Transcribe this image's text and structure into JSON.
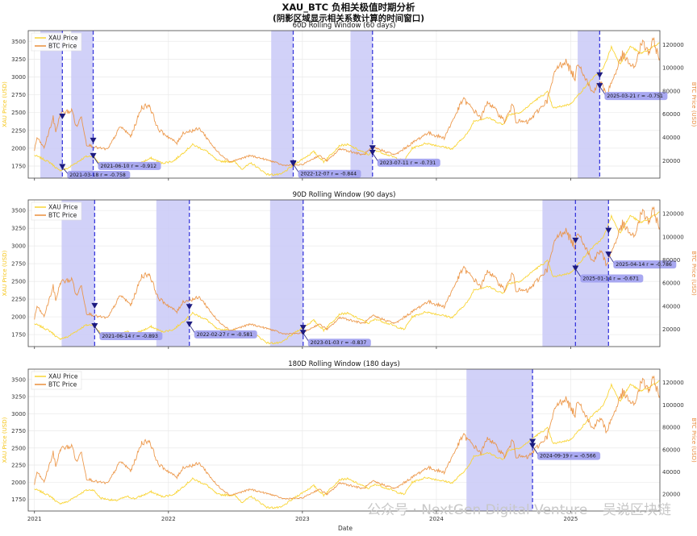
{
  "title": "XAU_BTC 负相关极值时期分析",
  "subtitle": "(阴影区域显示相关系数计算的时间窗口)",
  "watermark": "公众号 · NextGen Digital Venture",
  "watermark2": "吴说区块链",
  "x_label": "Date",
  "left_axis_label": "XAU Price (USD)",
  "right_axis_label": "BTC Price (USD)",
  "colors": {
    "xau": "#f9d536",
    "btc": "#eb8f3b",
    "shade": "#c9c9f7",
    "marker": "#1c1a80",
    "vline": "#3b3bdc",
    "grid": "#e9e9e9"
  },
  "chart_data": [
    {
      "type": "line",
      "title": "60D Rolling Window (60 days)",
      "x_range": [
        "2020-12-15",
        "2025-09-01"
      ],
      "x_ticks": [
        "2021",
        "2022",
        "2023",
        "2024",
        "2025"
      ],
      "y_left_lim": [
        1580,
        3650
      ],
      "y_left_ticks": [
        1750,
        2000,
        2250,
        2500,
        2750,
        3000,
        3250,
        3500
      ],
      "y_right_lim": [
        5000,
        132000
      ],
      "y_right_ticks": [
        20000,
        40000,
        60000,
        80000,
        100000,
        120000
      ],
      "legend": [
        "XAU Price",
        "BTC Price"
      ],
      "windows": [
        {
          "start": "2021-01-17",
          "end": "2021-03-18",
          "label": "2021-03-18",
          "corr": "r = -0.758",
          "xau": 1732,
          "btc": 57700
        },
        {
          "start": "2021-04-11",
          "end": "2021-06-10",
          "label": "2021-06-10",
          "corr": "r = -0.912",
          "xau": 1887,
          "btc": 37000
        },
        {
          "start": "2022-10-08",
          "end": "2022-12-07",
          "label": "2022-12-07",
          "corr": "r = -0.844",
          "xau": 1785,
          "btc": 17000
        },
        {
          "start": "2023-05-12",
          "end": "2023-07-11",
          "label": "2023-07-11",
          "corr": "r = -0.731",
          "xau": 1932,
          "btc": 30500
        },
        {
          "start": "2025-01-20",
          "end": "2025-03-21",
          "label": "2025-03-21",
          "corr": "r = -0.751",
          "xau": 3020,
          "btc": 84000
        }
      ]
    },
    {
      "type": "line",
      "title": "90D Rolling Window (90 days)",
      "x_range": [
        "2020-12-15",
        "2025-09-01"
      ],
      "x_ticks": [
        "2021",
        "2022",
        "2023",
        "2024",
        "2025"
      ],
      "y_left_lim": [
        1580,
        3650
      ],
      "y_left_ticks": [
        1750,
        2000,
        2250,
        2500,
        2750,
        3000,
        3250,
        3500
      ],
      "y_right_lim": [
        5000,
        132000
      ],
      "y_right_ticks": [
        20000,
        40000,
        60000,
        80000,
        100000,
        120000
      ],
      "legend": [
        "XAU Price",
        "BTC Price"
      ],
      "windows": [
        {
          "start": "2021-03-16",
          "end": "2021-06-14",
          "label": "2021-06-14",
          "corr": "r = -0.893",
          "xau": 1865,
          "btc": 40000
        },
        {
          "start": "2021-11-29",
          "end": "2022-02-27",
          "label": "2022-02-27",
          "corr": "r = -0.581",
          "xau": 1889,
          "btc": 39000
        },
        {
          "start": "2022-10-05",
          "end": "2023-01-03",
          "label": "2023-01-03",
          "corr": "r = -0.837",
          "xau": 1840,
          "btc": 16700
        },
        {
          "start": "2024-10-16",
          "end": "2025-01-14",
          "label": "2025-01-14",
          "corr": "r = -0.671",
          "xau": 2677,
          "btc": 96500
        },
        {
          "start": "2025-01-14",
          "end": "2025-04-14",
          "label": "2025-04-14",
          "corr": "r = -0.786",
          "xau": 3210,
          "btc": 84500
        }
      ]
    },
    {
      "type": "line",
      "title": "180D Rolling Window (180 days)",
      "x_range": [
        "2020-12-15",
        "2025-09-01"
      ],
      "x_ticks": [
        "2021",
        "2022",
        "2023",
        "2024",
        "2025"
      ],
      "y_left_lim": [
        1580,
        3650
      ],
      "y_left_ticks": [
        1750,
        2000,
        2250,
        2500,
        2750,
        3000,
        3250,
        3500
      ],
      "y_right_lim": [
        5000,
        132000
      ],
      "y_right_ticks": [
        20000,
        40000,
        60000,
        80000,
        100000,
        120000
      ],
      "legend": [
        "XAU Price",
        "BTC Price"
      ],
      "windows": [
        {
          "start": "2024-03-23",
          "end": "2024-09-19",
          "label": "2024-09-19",
          "corr": "r = -0.566",
          "xau": 2586,
          "btc": 63000
        }
      ]
    }
  ],
  "series_points": {
    "xau": [
      [
        "2021-01-01",
        1900
      ],
      [
        "2021-01-20",
        1860
      ],
      [
        "2021-02-15",
        1790
      ],
      [
        "2021-03-08",
        1690
      ],
      [
        "2021-03-30",
        1710
      ],
      [
        "2021-04-20",
        1780
      ],
      [
        "2021-05-20",
        1880
      ],
      [
        "2021-06-10",
        1890
      ],
      [
        "2021-06-30",
        1770
      ],
      [
        "2021-08-10",
        1730
      ],
      [
        "2021-09-10",
        1790
      ],
      [
        "2021-10-01",
        1760
      ],
      [
        "2021-11-15",
        1860
      ],
      [
        "2021-12-15",
        1790
      ],
      [
        "2022-01-15",
        1820
      ],
      [
        "2022-03-08",
        2050
      ],
      [
        "2022-04-15",
        1960
      ],
      [
        "2022-05-15",
        1820
      ],
      [
        "2022-06-30",
        1810
      ],
      [
        "2022-07-20",
        1710
      ],
      [
        "2022-08-15",
        1790
      ],
      [
        "2022-09-28",
        1630
      ],
      [
        "2022-11-03",
        1630
      ],
      [
        "2022-12-15",
        1790
      ],
      [
        "2023-02-01",
        1950
      ],
      [
        "2023-02-28",
        1810
      ],
      [
        "2023-04-13",
        2040
      ],
      [
        "2023-05-04",
        2050
      ],
      [
        "2023-06-29",
        1910
      ],
      [
        "2023-07-20",
        1970
      ],
      [
        "2023-10-05",
        1820
      ],
      [
        "2023-10-27",
        2000
      ],
      [
        "2023-12-04",
        2070
      ],
      [
        "2024-02-14",
        1990
      ],
      [
        "2024-03-29",
        2230
      ],
      [
        "2024-04-12",
        2380
      ],
      [
        "2024-05-20",
        2430
      ],
      [
        "2024-06-30",
        2330
      ],
      [
        "2024-07-17",
        2470
      ],
      [
        "2024-08-20",
        2510
      ],
      [
        "2024-09-26",
        2670
      ],
      [
        "2024-10-30",
        2790
      ],
      [
        "2024-11-14",
        2560
      ],
      [
        "2024-12-31",
        2620
      ],
      [
        "2025-01-31",
        2800
      ],
      [
        "2025-02-24",
        2950
      ],
      [
        "2025-03-31",
        3120
      ],
      [
        "2025-04-22",
        3420
      ],
      [
        "2025-05-15",
        3180
      ],
      [
        "2025-06-13",
        3430
      ],
      [
        "2025-07-10",
        3330
      ],
      [
        "2025-08-08",
        3400
      ],
      [
        "2025-08-31",
        3480
      ]
    ],
    "btc": [
      [
        "2021-01-01",
        29000
      ],
      [
        "2021-01-08",
        40000
      ],
      [
        "2021-01-27",
        31000
      ],
      [
        "2021-02-21",
        57000
      ],
      [
        "2021-02-28",
        45000
      ],
      [
        "2021-03-13",
        61000
      ],
      [
        "2021-04-14",
        63000
      ],
      [
        "2021-04-25",
        49000
      ],
      [
        "2021-05-09",
        58000
      ],
      [
        "2021-05-23",
        34000
      ],
      [
        "2021-06-22",
        31000
      ],
      [
        "2021-07-20",
        29800
      ],
      [
        "2021-08-23",
        49500
      ],
      [
        "2021-09-21",
        41000
      ],
      [
        "2021-10-20",
        66000
      ],
      [
        "2021-11-10",
        68000
      ],
      [
        "2021-12-04",
        47000
      ],
      [
        "2022-01-24",
        35000
      ],
      [
        "2022-02-10",
        44000
      ],
      [
        "2022-03-28",
        47500
      ],
      [
        "2022-05-12",
        28500
      ],
      [
        "2022-06-18",
        19000
      ],
      [
        "2022-08-13",
        24400
      ],
      [
        "2022-10-15",
        19100
      ],
      [
        "2022-11-09",
        16000
      ],
      [
        "2022-12-31",
        16500
      ],
      [
        "2023-02-15",
        24500
      ],
      [
        "2023-03-10",
        19900
      ],
      [
        "2023-04-14",
        30400
      ],
      [
        "2023-06-15",
        25000
      ],
      [
        "2023-07-13",
        31500
      ],
      [
        "2023-09-11",
        25000
      ],
      [
        "2023-10-24",
        34500
      ],
      [
        "2023-12-08",
        44000
      ],
      [
        "2024-01-22",
        39500
      ],
      [
        "2024-03-14",
        73000
      ],
      [
        "2024-05-01",
        57000
      ],
      [
        "2024-05-21",
        71000
      ],
      [
        "2024-07-05",
        54000
      ],
      [
        "2024-07-29",
        69000
      ],
      [
        "2024-08-05",
        54000
      ],
      [
        "2024-09-06",
        53000
      ],
      [
        "2024-10-29",
        72000
      ],
      [
        "2024-11-22",
        99000
      ],
      [
        "2024-12-17",
        106000
      ],
      [
        "2025-01-13",
        91000
      ],
      [
        "2025-01-21",
        106000
      ],
      [
        "2025-02-28",
        79000
      ],
      [
        "2025-03-24",
        88000
      ],
      [
        "2025-04-08",
        76000
      ],
      [
        "2025-05-22",
        111000
      ],
      [
        "2025-06-22",
        99000
      ],
      [
        "2025-07-14",
        122000
      ],
      [
        "2025-08-02",
        113000
      ],
      [
        "2025-08-14",
        123000
      ],
      [
        "2025-08-31",
        108000
      ]
    ]
  }
}
